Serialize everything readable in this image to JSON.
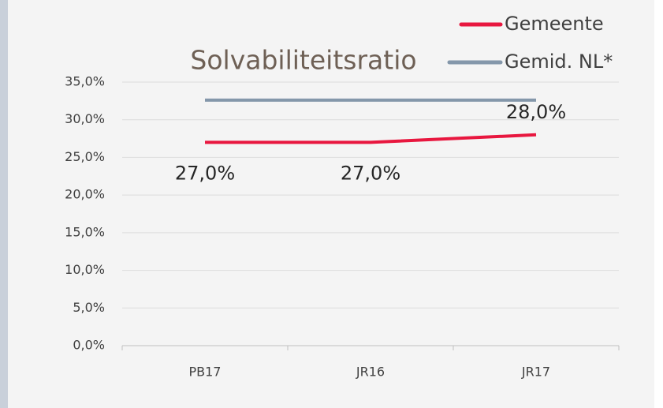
{
  "chart_data": {
    "type": "line",
    "title": "Solvabiliteitsratio",
    "categories": [
      "PB17",
      "JR16",
      "JR17"
    ],
    "series": [
      {
        "name": "Gemeente",
        "color": "#e8173f",
        "values": [
          27,
          27,
          28
        ],
        "value_labels": [
          "27,0%",
          "27,0%",
          "28,0%"
        ]
      },
      {
        "name": "Gemid. NL*",
        "color": "#8497aa",
        "values": [
          32.6,
          32.6,
          32.6
        ]
      }
    ],
    "ylim": [
      0,
      35
    ],
    "yticks": [
      {
        "value": 0,
        "label": "0,0%"
      },
      {
        "value": 5,
        "label": "5,0%"
      },
      {
        "value": 10,
        "label": "10,0%"
      },
      {
        "value": 15,
        "label": "15,0%"
      },
      {
        "value": 20,
        "label": "20,0%"
      },
      {
        "value": 25,
        "label": "25,0%"
      },
      {
        "value": 30,
        "label": "30,0%"
      },
      {
        "value": 35,
        "label": "35,0%"
      }
    ],
    "grid": true
  }
}
